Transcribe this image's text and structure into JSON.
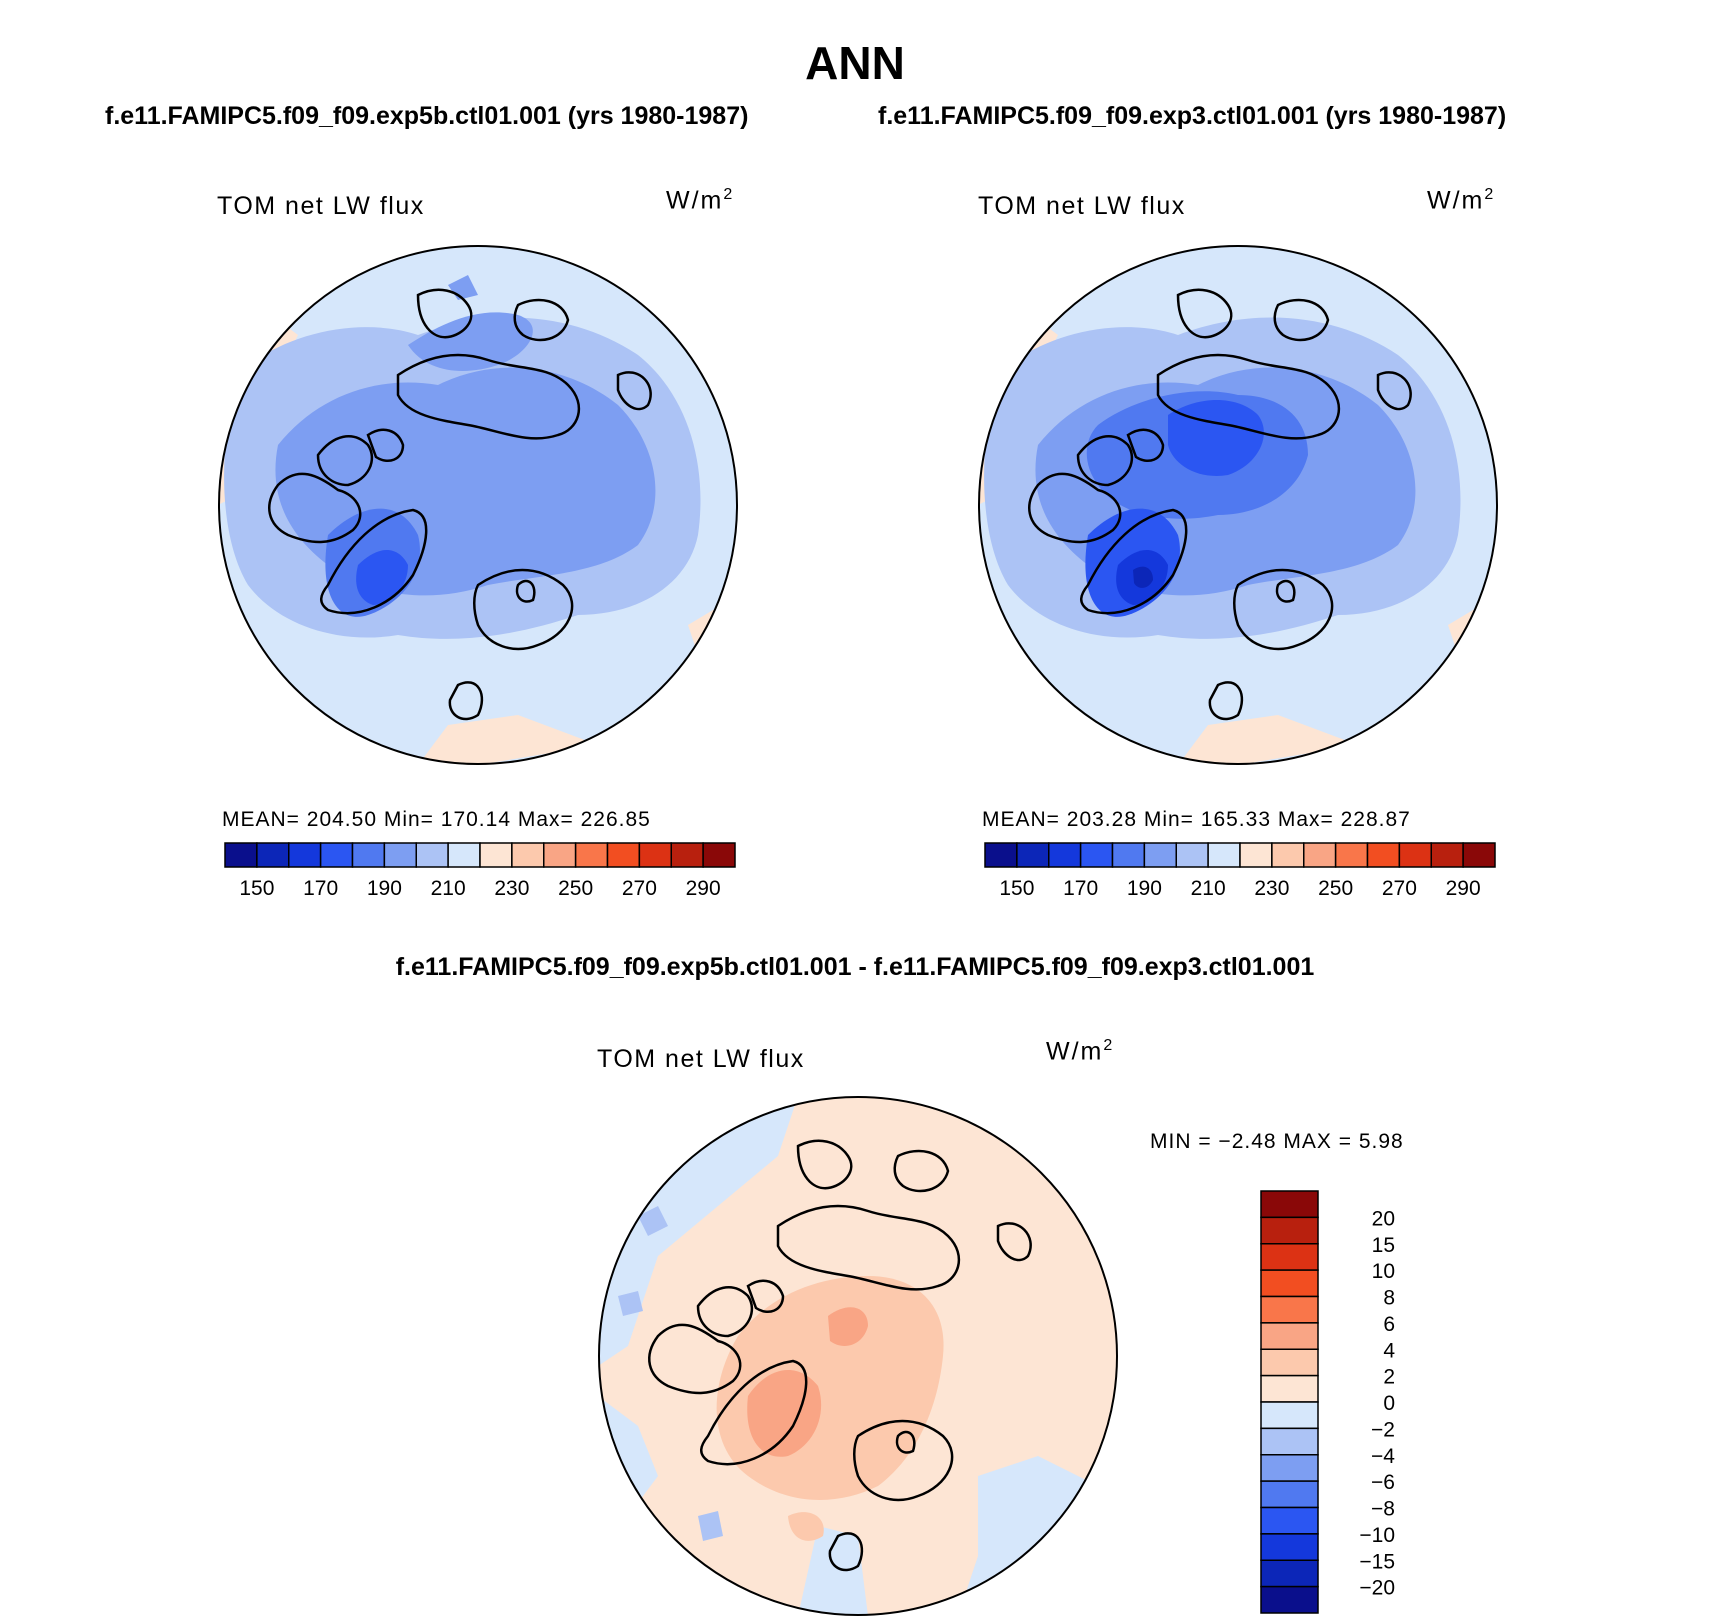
{
  "header": {
    "title": "ANN",
    "left_case": "f.e11.FAMIPC5.f09_f09.exp5b.ctl01.001 (yrs 1980-1987)",
    "right_case": "f.e11.FAMIPC5.f09_f09.exp3.ctl01.001 (yrs 1980-1987)",
    "diff_case": "f.e11.FAMIPC5.f09_f09.exp5b.ctl01.001 - f.e11.FAMIPC5.f09_f09.exp3.ctl01.001"
  },
  "panels": [
    {
      "field_label": "TOM net LW flux",
      "units_base": "W/m",
      "units_exp": "2",
      "stats": "MEAN= 204.50   Min= 170.14   Max= 226.85"
    },
    {
      "field_label": "TOM net LW flux",
      "units_base": "W/m",
      "units_exp": "2",
      "stats": "MEAN= 203.28   Min= 165.33   Max= 228.87"
    },
    {
      "field_label": "TOM net LW flux",
      "units_base": "W/m",
      "units_exp": "2",
      "stats": "MIN =   −2.48 MAX =     5.98"
    }
  ],
  "abs_colorbar": {
    "colors": [
      "#0a0f8c",
      "#0c26b8",
      "#1438dc",
      "#2b56f2",
      "#5079f0",
      "#7d9ef2",
      "#acc3f5",
      "#d6e7fb",
      "#fde5d4",
      "#fcc9ad",
      "#f9a585",
      "#f9764a",
      "#f24e21",
      "#dc3214",
      "#b8200e",
      "#8a0808"
    ],
    "labels": [
      "150",
      "170",
      "190",
      "210",
      "230",
      "250",
      "270",
      "290"
    ]
  },
  "diff_colorbar": {
    "colors": [
      "#8a0808",
      "#b8200e",
      "#dc3214",
      "#f24e21",
      "#f9764a",
      "#f9a585",
      "#fcc9ad",
      "#fde5d4",
      "#d6e7fb",
      "#acc3f5",
      "#7d9ef2",
      "#5079f0",
      "#2b56f2",
      "#1438dc",
      "#0c26b8",
      "#0a0f8c"
    ],
    "labels": [
      "20",
      "15",
      "10",
      "8",
      "6",
      "4",
      "2",
      "0",
      "−2",
      "−4",
      "−6",
      "−8",
      "−10",
      "−15",
      "−20"
    ]
  }
}
